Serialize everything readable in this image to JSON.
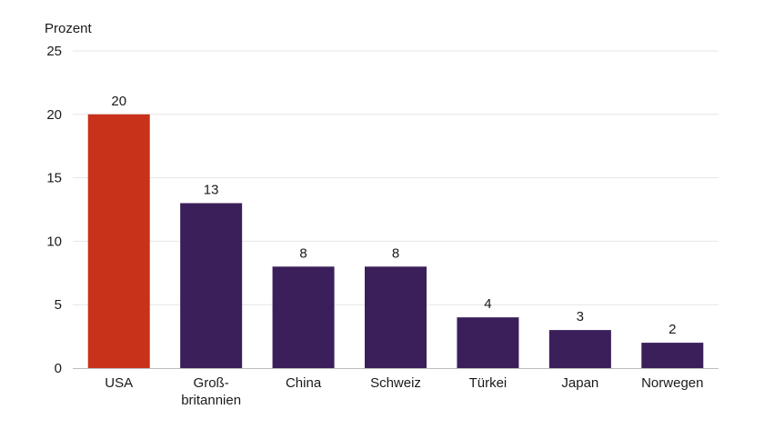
{
  "chart_data": {
    "type": "bar",
    "ylabel": "Prozent",
    "xlabel": "",
    "title": "",
    "ylim": [
      0,
      25
    ],
    "yticks": [
      0,
      5,
      10,
      15,
      20,
      25
    ],
    "grid": true,
    "categories": [
      [
        "USA"
      ],
      [
        "Groß-",
        "britannien"
      ],
      [
        "China"
      ],
      [
        "Schweiz"
      ],
      [
        "Türkei"
      ],
      [
        "Japan"
      ],
      [
        "Norwegen"
      ]
    ],
    "values": [
      20,
      13,
      8,
      8,
      4,
      3,
      2
    ],
    "colors": {
      "highlight": "#c8321a",
      "default": "#3b1f5a"
    },
    "highlight_index": 0
  }
}
